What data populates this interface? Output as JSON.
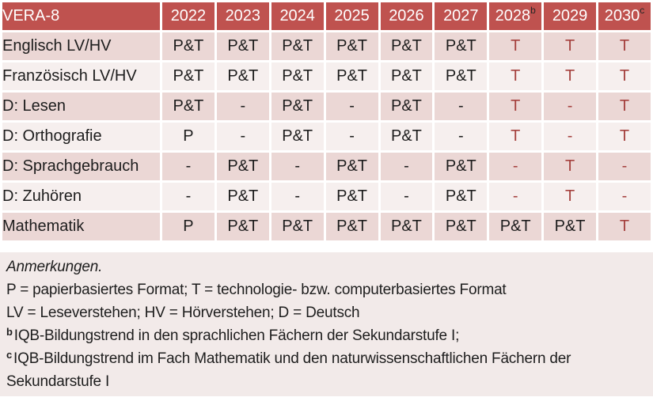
{
  "table": {
    "title": "VERA-8",
    "columns": [
      {
        "label": "2022",
        "sup": ""
      },
      {
        "label": "2023",
        "sup": ""
      },
      {
        "label": "2024",
        "sup": ""
      },
      {
        "label": "2025",
        "sup": ""
      },
      {
        "label": "2026",
        "sup": ""
      },
      {
        "label": "2027",
        "sup": ""
      },
      {
        "label": "2028",
        "sup": "b"
      },
      {
        "label": "2029",
        "sup": ""
      },
      {
        "label": "2030",
        "sup": "c"
      }
    ],
    "rows": [
      {
        "label": "Englisch LV/HV",
        "cells": [
          {
            "v": "P&T",
            "red": false
          },
          {
            "v": "P&T",
            "red": false
          },
          {
            "v": "P&T",
            "red": false
          },
          {
            "v": "P&T",
            "red": false
          },
          {
            "v": "P&T",
            "red": false
          },
          {
            "v": "P&T",
            "red": false
          },
          {
            "v": "T",
            "red": true
          },
          {
            "v": "T",
            "red": true
          },
          {
            "v": "T",
            "red": true
          }
        ]
      },
      {
        "label": "Französisch LV/HV",
        "cells": [
          {
            "v": "P&T",
            "red": false
          },
          {
            "v": "P&T",
            "red": false
          },
          {
            "v": "P&T",
            "red": false
          },
          {
            "v": "P&T",
            "red": false
          },
          {
            "v": "P&T",
            "red": false
          },
          {
            "v": "P&T",
            "red": false
          },
          {
            "v": "T",
            "red": true
          },
          {
            "v": "T",
            "red": true
          },
          {
            "v": "T",
            "red": true
          }
        ]
      },
      {
        "label": "D: Lesen",
        "cells": [
          {
            "v": "P&T",
            "red": false
          },
          {
            "v": "-",
            "red": false
          },
          {
            "v": "P&T",
            "red": false
          },
          {
            "v": "-",
            "red": false
          },
          {
            "v": "P&T",
            "red": false
          },
          {
            "v": "-",
            "red": false
          },
          {
            "v": "T",
            "red": true
          },
          {
            "v": "-",
            "red": true
          },
          {
            "v": "T",
            "red": true
          }
        ]
      },
      {
        "label": "D: Orthografie",
        "cells": [
          {
            "v": "P",
            "red": false
          },
          {
            "v": "-",
            "red": false
          },
          {
            "v": "P&T",
            "red": false
          },
          {
            "v": "-",
            "red": false
          },
          {
            "v": "P&T",
            "red": false
          },
          {
            "v": "-",
            "red": false
          },
          {
            "v": "T",
            "red": true
          },
          {
            "v": "-",
            "red": true
          },
          {
            "v": "T",
            "red": true
          }
        ]
      },
      {
        "label": "D: Sprachgebrauch",
        "cells": [
          {
            "v": "-",
            "red": false
          },
          {
            "v": "P&T",
            "red": false
          },
          {
            "v": "-",
            "red": false
          },
          {
            "v": "P&T",
            "red": false
          },
          {
            "v": "-",
            "red": false
          },
          {
            "v": "P&T",
            "red": false
          },
          {
            "v": "-",
            "red": true
          },
          {
            "v": "T",
            "red": true
          },
          {
            "v": "-",
            "red": true
          }
        ]
      },
      {
        "label": "D: Zuhören",
        "cells": [
          {
            "v": "-",
            "red": false
          },
          {
            "v": "P&T",
            "red": false
          },
          {
            "v": "-",
            "red": false
          },
          {
            "v": "P&T",
            "red": false
          },
          {
            "v": "-",
            "red": false
          },
          {
            "v": "P&T",
            "red": false
          },
          {
            "v": "-",
            "red": true
          },
          {
            "v": "T",
            "red": true
          },
          {
            "v": "-",
            "red": true
          }
        ]
      },
      {
        "label": "Mathematik",
        "cells": [
          {
            "v": "P",
            "red": false
          },
          {
            "v": "P&T",
            "red": false
          },
          {
            "v": "P&T",
            "red": false
          },
          {
            "v": "P&T",
            "red": false
          },
          {
            "v": "P&T",
            "red": false
          },
          {
            "v": "P&T",
            "red": false
          },
          {
            "v": "P&T",
            "red": false
          },
          {
            "v": "P&T",
            "red": false
          },
          {
            "v": "T",
            "red": true
          }
        ]
      }
    ]
  },
  "footnotes": {
    "heading": "Anmerkungen.",
    "formats_line": "P = papierbasiertes Format; T = technologie- bzw. computerbasiertes Format",
    "abbrev_line": "LV = Leseverstehen; HV = Hörverstehen; D = Deutsch",
    "note_b_sup": "b",
    "note_b_text": "IQB-Bildungstrend in den sprachlichen Fächern der Sekundarstufe I;",
    "note_c_sup": "c",
    "note_c_text": "IQB-Bildungstrend im Fach Mathematik und den naturwissenschaftlichen Fächern der Sekundarstufe I"
  },
  "colors": {
    "header_bg": "#bf524f",
    "row_dark": "#ebd7d5",
    "row_light": "#f6efee",
    "notes_bg": "#f2eae9",
    "accent_red": "#a5413e",
    "text": "#1d1d1d"
  }
}
